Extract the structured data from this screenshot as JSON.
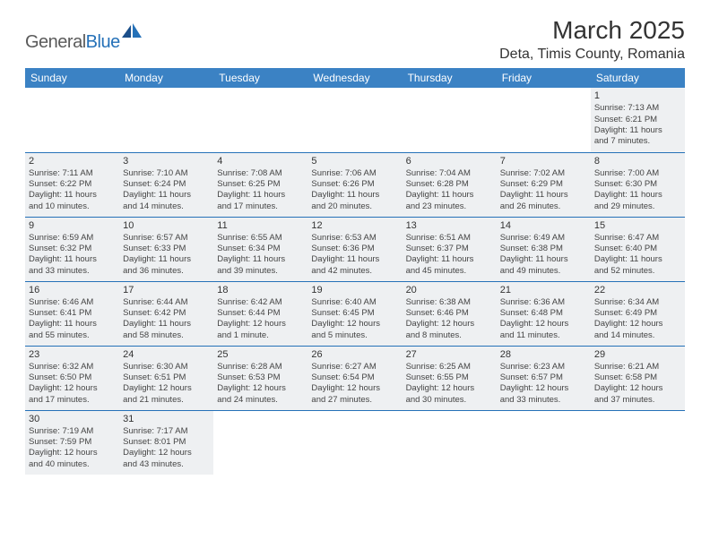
{
  "logo": {
    "part1": "General",
    "part2": "Blue"
  },
  "title": "March 2025",
  "location": "Deta, Timis County, Romania",
  "colors": {
    "header_bg": "#3b82c4",
    "header_text": "#ffffff",
    "row_border": "#2571b8",
    "cell_bg": "#eef0f2",
    "logo_gray": "#5a5a5a",
    "logo_blue": "#2571b8"
  },
  "day_headers": [
    "Sunday",
    "Monday",
    "Tuesday",
    "Wednesday",
    "Thursday",
    "Friday",
    "Saturday"
  ],
  "weeks": [
    [
      null,
      null,
      null,
      null,
      null,
      null,
      {
        "n": "1",
        "sr": "Sunrise: 7:13 AM",
        "ss": "Sunset: 6:21 PM",
        "d1": "Daylight: 11 hours",
        "d2": "and 7 minutes."
      }
    ],
    [
      {
        "n": "2",
        "sr": "Sunrise: 7:11 AM",
        "ss": "Sunset: 6:22 PM",
        "d1": "Daylight: 11 hours",
        "d2": "and 10 minutes."
      },
      {
        "n": "3",
        "sr": "Sunrise: 7:10 AM",
        "ss": "Sunset: 6:24 PM",
        "d1": "Daylight: 11 hours",
        "d2": "and 14 minutes."
      },
      {
        "n": "4",
        "sr": "Sunrise: 7:08 AM",
        "ss": "Sunset: 6:25 PM",
        "d1": "Daylight: 11 hours",
        "d2": "and 17 minutes."
      },
      {
        "n": "5",
        "sr": "Sunrise: 7:06 AM",
        "ss": "Sunset: 6:26 PM",
        "d1": "Daylight: 11 hours",
        "d2": "and 20 minutes."
      },
      {
        "n": "6",
        "sr": "Sunrise: 7:04 AM",
        "ss": "Sunset: 6:28 PM",
        "d1": "Daylight: 11 hours",
        "d2": "and 23 minutes."
      },
      {
        "n": "7",
        "sr": "Sunrise: 7:02 AM",
        "ss": "Sunset: 6:29 PM",
        "d1": "Daylight: 11 hours",
        "d2": "and 26 minutes."
      },
      {
        "n": "8",
        "sr": "Sunrise: 7:00 AM",
        "ss": "Sunset: 6:30 PM",
        "d1": "Daylight: 11 hours",
        "d2": "and 29 minutes."
      }
    ],
    [
      {
        "n": "9",
        "sr": "Sunrise: 6:59 AM",
        "ss": "Sunset: 6:32 PM",
        "d1": "Daylight: 11 hours",
        "d2": "and 33 minutes."
      },
      {
        "n": "10",
        "sr": "Sunrise: 6:57 AM",
        "ss": "Sunset: 6:33 PM",
        "d1": "Daylight: 11 hours",
        "d2": "and 36 minutes."
      },
      {
        "n": "11",
        "sr": "Sunrise: 6:55 AM",
        "ss": "Sunset: 6:34 PM",
        "d1": "Daylight: 11 hours",
        "d2": "and 39 minutes."
      },
      {
        "n": "12",
        "sr": "Sunrise: 6:53 AM",
        "ss": "Sunset: 6:36 PM",
        "d1": "Daylight: 11 hours",
        "d2": "and 42 minutes."
      },
      {
        "n": "13",
        "sr": "Sunrise: 6:51 AM",
        "ss": "Sunset: 6:37 PM",
        "d1": "Daylight: 11 hours",
        "d2": "and 45 minutes."
      },
      {
        "n": "14",
        "sr": "Sunrise: 6:49 AM",
        "ss": "Sunset: 6:38 PM",
        "d1": "Daylight: 11 hours",
        "d2": "and 49 minutes."
      },
      {
        "n": "15",
        "sr": "Sunrise: 6:47 AM",
        "ss": "Sunset: 6:40 PM",
        "d1": "Daylight: 11 hours",
        "d2": "and 52 minutes."
      }
    ],
    [
      {
        "n": "16",
        "sr": "Sunrise: 6:46 AM",
        "ss": "Sunset: 6:41 PM",
        "d1": "Daylight: 11 hours",
        "d2": "and 55 minutes."
      },
      {
        "n": "17",
        "sr": "Sunrise: 6:44 AM",
        "ss": "Sunset: 6:42 PM",
        "d1": "Daylight: 11 hours",
        "d2": "and 58 minutes."
      },
      {
        "n": "18",
        "sr": "Sunrise: 6:42 AM",
        "ss": "Sunset: 6:44 PM",
        "d1": "Daylight: 12 hours",
        "d2": "and 1 minute."
      },
      {
        "n": "19",
        "sr": "Sunrise: 6:40 AM",
        "ss": "Sunset: 6:45 PM",
        "d1": "Daylight: 12 hours",
        "d2": "and 5 minutes."
      },
      {
        "n": "20",
        "sr": "Sunrise: 6:38 AM",
        "ss": "Sunset: 6:46 PM",
        "d1": "Daylight: 12 hours",
        "d2": "and 8 minutes."
      },
      {
        "n": "21",
        "sr": "Sunrise: 6:36 AM",
        "ss": "Sunset: 6:48 PM",
        "d1": "Daylight: 12 hours",
        "d2": "and 11 minutes."
      },
      {
        "n": "22",
        "sr": "Sunrise: 6:34 AM",
        "ss": "Sunset: 6:49 PM",
        "d1": "Daylight: 12 hours",
        "d2": "and 14 minutes."
      }
    ],
    [
      {
        "n": "23",
        "sr": "Sunrise: 6:32 AM",
        "ss": "Sunset: 6:50 PM",
        "d1": "Daylight: 12 hours",
        "d2": "and 17 minutes."
      },
      {
        "n": "24",
        "sr": "Sunrise: 6:30 AM",
        "ss": "Sunset: 6:51 PM",
        "d1": "Daylight: 12 hours",
        "d2": "and 21 minutes."
      },
      {
        "n": "25",
        "sr": "Sunrise: 6:28 AM",
        "ss": "Sunset: 6:53 PM",
        "d1": "Daylight: 12 hours",
        "d2": "and 24 minutes."
      },
      {
        "n": "26",
        "sr": "Sunrise: 6:27 AM",
        "ss": "Sunset: 6:54 PM",
        "d1": "Daylight: 12 hours",
        "d2": "and 27 minutes."
      },
      {
        "n": "27",
        "sr": "Sunrise: 6:25 AM",
        "ss": "Sunset: 6:55 PM",
        "d1": "Daylight: 12 hours",
        "d2": "and 30 minutes."
      },
      {
        "n": "28",
        "sr": "Sunrise: 6:23 AM",
        "ss": "Sunset: 6:57 PM",
        "d1": "Daylight: 12 hours",
        "d2": "and 33 minutes."
      },
      {
        "n": "29",
        "sr": "Sunrise: 6:21 AM",
        "ss": "Sunset: 6:58 PM",
        "d1": "Daylight: 12 hours",
        "d2": "and 37 minutes."
      }
    ],
    [
      {
        "n": "30",
        "sr": "Sunrise: 7:19 AM",
        "ss": "Sunset: 7:59 PM",
        "d1": "Daylight: 12 hours",
        "d2": "and 40 minutes."
      },
      {
        "n": "31",
        "sr": "Sunrise: 7:17 AM",
        "ss": "Sunset: 8:01 PM",
        "d1": "Daylight: 12 hours",
        "d2": "and 43 minutes."
      },
      null,
      null,
      null,
      null,
      null
    ]
  ]
}
